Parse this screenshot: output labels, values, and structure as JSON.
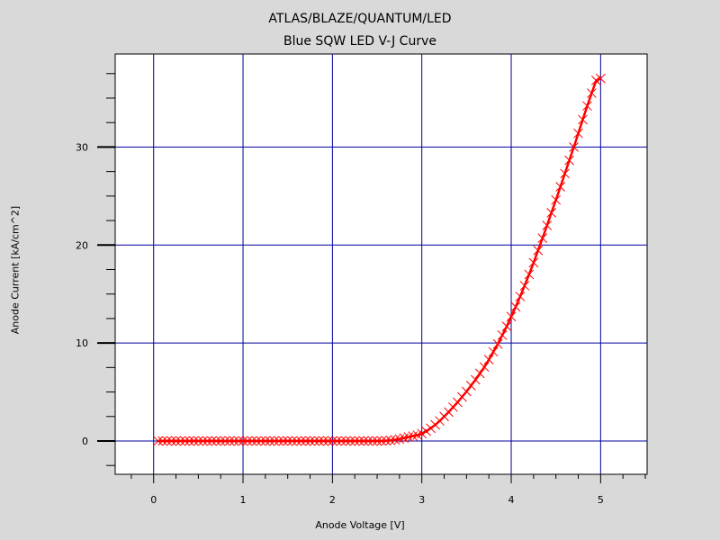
{
  "chart_data": {
    "type": "line",
    "title": "ATLAS/BLAZE/QUANTUM/LED",
    "subtitle": "Blue SQW LED V-J Curve",
    "xlabel": "Anode Voltage [V]",
    "ylabel": "Anode Current [kA/cm^2]",
    "xlim": [
      -0.43,
      5.52
    ],
    "ylim": [
      -3.4,
      39.5
    ],
    "xticks": [
      0,
      1,
      2,
      3,
      4,
      5
    ],
    "yticks": [
      0,
      10,
      20,
      30
    ],
    "grid": true,
    "grid_color": "#0000a0",
    "line_color": "#ff0000",
    "marker": "x",
    "background_plot": "#ffffff",
    "background_page": "#d9d9d9",
    "series": [
      {
        "x": [
          0.05,
          0.1,
          0.15,
          0.2,
          0.25,
          0.3,
          0.35,
          0.4,
          0.45,
          0.5,
          0.55,
          0.6,
          0.65,
          0.7,
          0.75,
          0.8,
          0.85,
          0.9,
          0.95,
          1.0,
          1.05,
          1.1,
          1.15,
          1.2,
          1.25,
          1.3,
          1.35,
          1.4,
          1.45,
          1.5,
          1.55,
          1.6,
          1.65,
          1.7,
          1.75,
          1.8,
          1.85,
          1.9,
          1.95,
          2.0,
          2.05,
          2.1,
          2.15,
          2.2,
          2.25,
          2.3,
          2.35,
          2.4,
          2.45,
          2.5,
          2.55,
          2.6,
          2.65,
          2.7,
          2.75,
          2.8,
          2.85,
          2.9,
          2.95,
          3.0,
          3.05,
          3.1,
          3.15,
          3.2,
          3.25,
          3.3,
          3.35,
          3.4,
          3.45,
          3.5,
          3.55,
          3.6,
          3.65,
          3.7,
          3.75,
          3.8,
          3.85,
          3.9,
          3.95,
          4.0,
          4.05,
          4.1,
          4.15,
          4.2,
          4.25,
          4.3,
          4.35,
          4.4,
          4.45,
          4.5,
          4.55,
          4.6,
          4.65,
          4.7,
          4.75,
          4.8,
          4.85,
          4.9,
          4.95,
          5.0
        ],
        "y": [
          0,
          0,
          0,
          0,
          0,
          0,
          0,
          0,
          0,
          0,
          0,
          0,
          0,
          0,
          0,
          0,
          0,
          0,
          0,
          0,
          0,
          0,
          0,
          0,
          0,
          0,
          0,
          0,
          0,
          0,
          0,
          0,
          0,
          0,
          0,
          0,
          0,
          0,
          0,
          0,
          0,
          0,
          0,
          0,
          0,
          0,
          0,
          0,
          0,
          0,
          0,
          0.02,
          0.06,
          0.12,
          0.2,
          0.3,
          0.4,
          0.5,
          0.6,
          0.75,
          1.0,
          1.3,
          1.65,
          2.05,
          2.5,
          2.95,
          3.45,
          3.95,
          4.5,
          5.05,
          5.65,
          6.25,
          6.9,
          7.55,
          8.3,
          9.1,
          9.9,
          10.8,
          11.7,
          12.7,
          13.7,
          14.75,
          15.85,
          17.0,
          18.2,
          19.45,
          20.7,
          22.0,
          23.3,
          24.6,
          25.95,
          27.3,
          28.65,
          30.0,
          31.4,
          32.8,
          34.2,
          35.5,
          36.8,
          37.0
        ]
      }
    ]
  }
}
